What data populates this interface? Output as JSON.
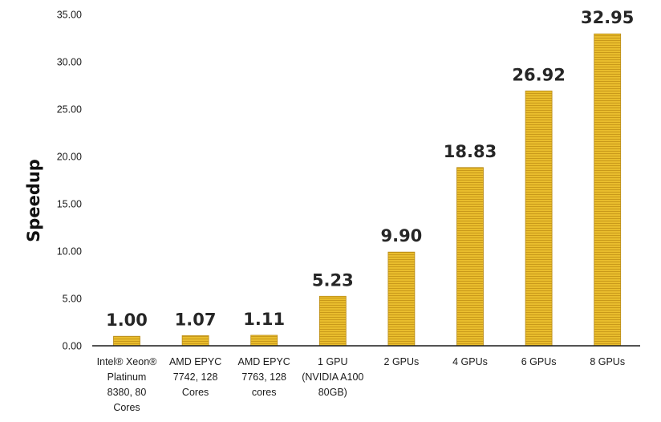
{
  "chart_data": {
    "type": "bar",
    "title": "",
    "xlabel": "",
    "ylabel": "Speedup",
    "ylim": [
      0,
      35
    ],
    "yticks": [
      "0.00",
      "5.00",
      "10.00",
      "15.00",
      "20.00",
      "25.00",
      "30.00",
      "35.00"
    ],
    "grid": false,
    "legend": "none",
    "categories": [
      [
        "Intel® Xeon®",
        "Platinum",
        "8380, 80",
        "Cores"
      ],
      [
        "AMD EPYC",
        "7742, 128",
        "Cores"
      ],
      [
        "AMD EPYC",
        "7763, 128",
        "cores"
      ],
      [
        "1 GPU",
        "(NVIDIA A100",
        "80GB)"
      ],
      [
        "2 GPUs"
      ],
      [
        "4 GPUs"
      ],
      [
        "6 GPUs"
      ],
      [
        "8 GPUs"
      ]
    ],
    "values": [
      1.0,
      1.07,
      1.11,
      5.23,
      9.9,
      18.83,
      26.92,
      32.95
    ],
    "value_labels": [
      "1.00",
      "1.07",
      "1.11",
      "5.23",
      "9.90",
      "18.83",
      "26.92",
      "32.95"
    ],
    "colors": {
      "bar_fill": "#e9bd2d",
      "bar_stripe": "#c9991a",
      "bar_edge": "#b88a14",
      "axis": "#1a1a1a",
      "text": "#262626"
    }
  }
}
